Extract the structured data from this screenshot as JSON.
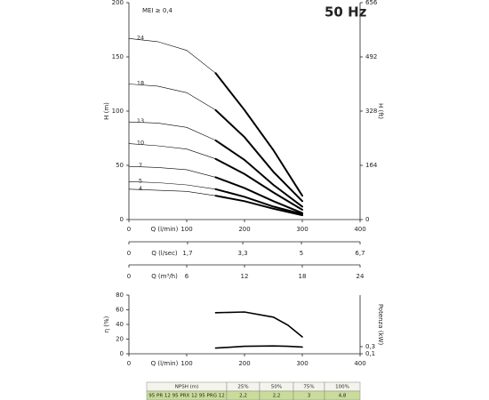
{
  "title": "50 Hz",
  "note": "MEI ≥ 0,4",
  "chart_data": [
    {
      "type": "line",
      "ylabel": "H (m)",
      "y2label": "H (ft)",
      "xlabel": "Q (l/min)",
      "x": [
        0,
        50,
        100,
        150,
        200,
        250,
        300
      ],
      "series": [
        {
          "name": "24",
          "color": "#000000",
          "values": [
            167,
            164,
            156,
            135,
            101,
            64,
            22
          ]
        },
        {
          "name": "18",
          "color": "#000000",
          "values": [
            125,
            123,
            117,
            101,
            76,
            44,
            17
          ]
        },
        {
          "name": "13",
          "color": "#000000",
          "values": [
            90,
            89,
            85,
            73,
            55,
            32,
            12
          ]
        },
        {
          "name": "10",
          "color": "#000000",
          "values": [
            70,
            68,
            65,
            56,
            42,
            25,
            9
          ]
        },
        {
          "name": "7",
          "color": "#000000",
          "values": [
            49,
            48,
            46,
            39,
            29,
            17,
            6
          ]
        },
        {
          "name": "5",
          "color": "#000000",
          "values": [
            35,
            34,
            32,
            28,
            21,
            12,
            5
          ]
        },
        {
          "name": "4",
          "color": "#000000",
          "values": [
            28,
            27,
            26,
            22,
            17,
            10,
            4
          ]
        }
      ],
      "xlim": [
        0,
        400
      ],
      "xticks": [
        0,
        100,
        200,
        300,
        400
      ],
      "ylim": [
        0,
        200
      ],
      "yticks": [
        0,
        50,
        100,
        150,
        200
      ],
      "y2lim": [
        0,
        656
      ],
      "y2ticks": [
        0,
        164,
        328,
        492,
        656
      ],
      "flow_axes": [
        {
          "label": "Q (l/sec)",
          "xlim": [
            0,
            6.7
          ],
          "xticks": [
            0,
            {
              "value": 1.7,
              "label": "1,7"
            },
            {
              "value": 3.3,
              "label": "3,3"
            },
            5,
            {
              "value": 6.7,
              "label": "6,7"
            }
          ]
        },
        {
          "label": "Q (m³/h)",
          "xlim": [
            0,
            24
          ],
          "xticks": [
            0,
            6,
            12,
            18,
            24
          ]
        }
      ]
    },
    {
      "type": "line",
      "ylabel": "η (%)",
      "y2label": "Potenza (kW)",
      "xlabel": "Q (l/min)",
      "x": [
        150,
        200,
        250,
        275,
        300
      ],
      "series": [
        {
          "name": "η",
          "color": "#000000",
          "values": [
            56,
            57,
            50,
            39,
            23
          ]
        },
        {
          "name": "Potenza",
          "color": "#000000",
          "axis": "y2",
          "values": [
            0.26,
            0.31,
            0.32,
            0.31,
            0.29
          ]
        }
      ],
      "xlim": [
        0,
        400
      ],
      "xticks": [
        0,
        100,
        200,
        300,
        400
      ],
      "ylim": [
        0,
        80
      ],
      "yticks": [
        0,
        20,
        40,
        60,
        80
      ],
      "y2lim": [
        0.1,
        1.75
      ],
      "y2ticks": [
        {
          "value": 0.1,
          "label": "0,1"
        },
        {
          "value": 0.3,
          "label": "0,3"
        }
      ]
    }
  ],
  "table": {
    "header": [
      "NPSH (m)",
      "25%",
      "50%",
      "75%",
      "100%"
    ],
    "rows": [
      [
        "95 PR 12  95 PRX 12  95 PRG 12",
        "2,2",
        "2,2",
        "3",
        "4,8"
      ]
    ]
  }
}
